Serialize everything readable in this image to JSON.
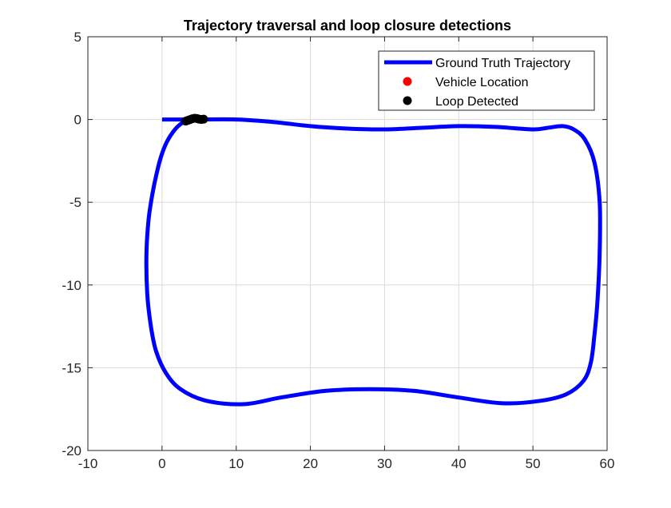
{
  "chart_data": {
    "type": "line",
    "title": "Trajectory traversal and loop closure detections",
    "xlabel": "",
    "ylabel": "",
    "xlim": [
      -10,
      60
    ],
    "ylim": [
      -20,
      5
    ],
    "xticks": [
      "-10",
      "0",
      "10",
      "20",
      "30",
      "40",
      "50",
      "60"
    ],
    "yticks": [
      "5",
      "0",
      "-5",
      "-10",
      "-15",
      "-20"
    ],
    "grid": true,
    "legend_position": "top-right",
    "series": [
      {
        "name": "Ground Truth Trajectory",
        "type": "line",
        "color": "#0000ff",
        "x": [
          0,
          2,
          5,
          10,
          15,
          20,
          25,
          30,
          35,
          40,
          45,
          50,
          52,
          54,
          55.5,
          57,
          58.3,
          59,
          59,
          58.7,
          58.3,
          57.8,
          56.8,
          54.5,
          51,
          46,
          40,
          34,
          28,
          22,
          16,
          11,
          6,
          2.5,
          0.5,
          -0.8,
          -1.5,
          -2,
          -2.1,
          -1.8,
          -1.3,
          -0.7,
          -0.1,
          0.6,
          1.4,
          2.3,
          3.2,
          4
        ],
        "y": [
          0,
          0,
          0,
          0,
          -0.15,
          -0.4,
          -0.55,
          -0.6,
          -0.5,
          -0.4,
          -0.45,
          -0.6,
          -0.5,
          -0.4,
          -0.6,
          -1.2,
          -2.6,
          -5,
          -8,
          -11,
          -13,
          -14.7,
          -15.8,
          -16.6,
          -17,
          -17.15,
          -16.8,
          -16.4,
          -16.3,
          -16.4,
          -16.8,
          -17.2,
          -17,
          -16.3,
          -15.3,
          -14,
          -12.5,
          -10.5,
          -8,
          -6,
          -4.5,
          -3.2,
          -2.2,
          -1.4,
          -0.8,
          -0.35,
          -0.1,
          0
        ],
        "line_width": 5
      },
      {
        "name": "Vehicle Location",
        "type": "scatter",
        "color": "#ff0000",
        "x": [],
        "y": []
      },
      {
        "name": "Loop Detected",
        "type": "scatter",
        "color": "#000000",
        "x": [
          3.2,
          3.5,
          3.8,
          4.1,
          4.4,
          4.7,
          5.0,
          5.3,
          5.6
        ],
        "y": [
          -0.1,
          -0.05,
          0.0,
          0.05,
          0.08,
          0.06,
          0.02,
          0.0,
          0.02
        ]
      }
    ]
  }
}
